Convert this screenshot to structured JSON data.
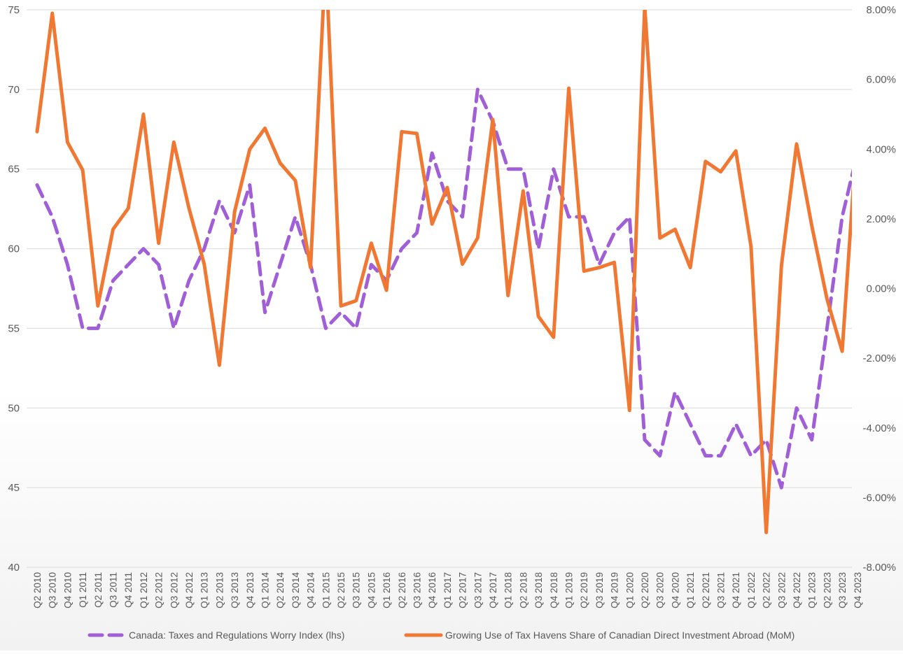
{
  "chart_data": {
    "type": "line",
    "title": "",
    "xlabel": "",
    "ylabel": "",
    "categories": [
      "Q2 2010",
      "Q3 2010",
      "Q4 2010",
      "Q1 2011",
      "Q2 2011",
      "Q3 2011",
      "Q4 2011",
      "Q1 2012",
      "Q2 2012",
      "Q3 2012",
      "Q4 2012",
      "Q1 2013",
      "Q2 2013",
      "Q3 2013",
      "Q4 2013",
      "Q1 2014",
      "Q2 2014",
      "Q3 2014",
      "Q4 2014",
      "Q1 2015",
      "Q2 2015",
      "Q3 2015",
      "Q4 2015",
      "Q1 2016",
      "Q2 2016",
      "Q3 2016",
      "Q4 2016",
      "Q1 2017",
      "Q2 2017",
      "Q3 2017",
      "Q4 2017",
      "Q1 2018",
      "Q2 2018",
      "Q3 2018",
      "Q4 2018",
      "Q1 2019",
      "Q2 2019",
      "Q3 2019",
      "Q4 2019",
      "Q1 2020",
      "Q2 2020",
      "Q3 2020",
      "Q4 2020",
      "Q1 2021",
      "Q2 2021",
      "Q3 2021",
      "Q4 2021",
      "Q1 2022",
      "Q2 2022",
      "Q3 2022",
      "Q4 2022",
      "Q1 2023",
      "Q2 2023",
      "Q3 2023",
      "Q4 2023"
    ],
    "ylim_left": [
      40,
      75
    ],
    "yticks_left": [
      "75",
      "70",
      "65",
      "60",
      "55",
      "50",
      "45",
      "40"
    ],
    "ylim_right": [
      -8,
      8
    ],
    "yticks_right": [
      "8.00%",
      "6.00%",
      "4.00%",
      "2.00%",
      "0.00%",
      "-2.00%",
      "-4.00%",
      "-6.00%",
      "-8.00%"
    ],
    "grid": true,
    "legend_position": "bottom",
    "series": [
      {
        "name": "Canada: Taxes and Regulations Worry Index (lhs)",
        "axis": "left",
        "color": "#a05fd6",
        "style": "dashed",
        "values": [
          64,
          62,
          59,
          55,
          55,
          58,
          59,
          60,
          59,
          55,
          58,
          60,
          63,
          61,
          64,
          56,
          59,
          62,
          59,
          55,
          56,
          55,
          59,
          58,
          60,
          61,
          66,
          63,
          62,
          70,
          68,
          65,
          65,
          60,
          65,
          62,
          62,
          59,
          61,
          62,
          48,
          47,
          51,
          49,
          47,
          47,
          49,
          47,
          48,
          45,
          50,
          48,
          55,
          62,
          66
        ]
      },
      {
        "name": "Growing Use of Tax Havens Share of Canadian Direct Investment Abroad (MoM)",
        "axis": "right",
        "color": "#f07832",
        "style": "solid",
        "values": [
          4.5,
          7.9,
          4.2,
          3.4,
          -0.5,
          1.7,
          2.3,
          5.0,
          1.3,
          4.2,
          2.3,
          0.7,
          -2.2,
          2.2,
          4.0,
          4.6,
          3.6,
          3.1,
          0.6,
          9.5,
          -0.5,
          -0.35,
          1.3,
          -0.05,
          4.5,
          4.45,
          1.85,
          2.9,
          0.7,
          1.45,
          4.85,
          -0.2,
          2.8,
          -0.8,
          -1.4,
          5.75,
          0.5,
          0.6,
          0.75,
          -3.5,
          8.1,
          1.45,
          1.7,
          0.6,
          3.65,
          3.35,
          3.95,
          1.2,
          -7.0,
          0.65,
          4.15,
          1.8,
          -0.3,
          -1.8,
          4.6
        ]
      }
    ]
  }
}
